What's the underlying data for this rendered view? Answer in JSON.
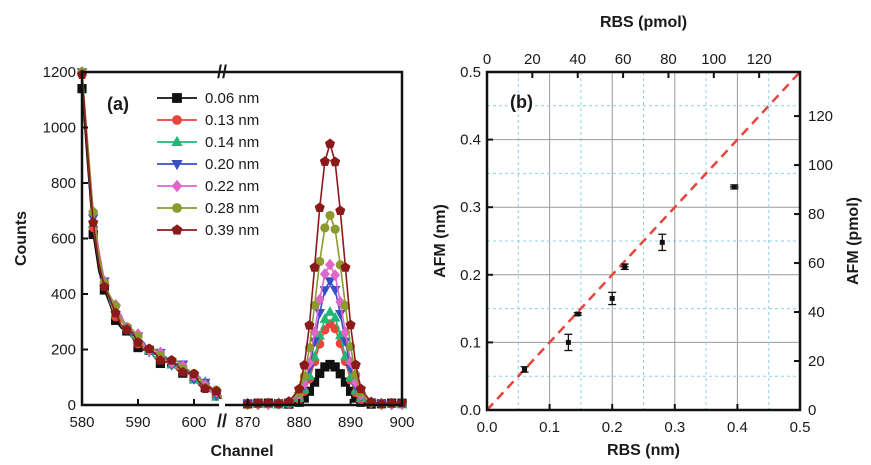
{
  "chart_data": [
    {
      "panel": "(a)",
      "type": "line",
      "xlabel": "Channel",
      "ylabel": "Counts",
      "x_segments": [
        {
          "xlim": [
            580,
            605
          ],
          "ticks": [
            "580",
            "590",
            "600"
          ],
          "tick_values": [
            580,
            590,
            600
          ]
        },
        {
          "xlim": [
            865,
            900
          ],
          "ticks": [
            "870",
            "880",
            "890",
            "900"
          ],
          "tick_values": [
            870,
            880,
            890,
            900
          ]
        }
      ],
      "break_marks": [
        "//",
        "//"
      ],
      "ylim": [
        0,
        1200
      ],
      "yticks": [
        "0",
        "200",
        "400",
        "600",
        "800",
        "1000",
        "1200"
      ],
      "legend": "top-center",
      "left_base": {
        "x": [
          580,
          581,
          582,
          583,
          584,
          585,
          586,
          587,
          588,
          589,
          590,
          591,
          592,
          593,
          594,
          595,
          596,
          597,
          598,
          599,
          600,
          601,
          602,
          603,
          604,
          605
        ],
        "y": [
          1200,
          900,
          650,
          520,
          430,
          370,
          330,
          300,
          270,
          250,
          230,
          210,
          195,
          180,
          170,
          160,
          150,
          140,
          130,
          115,
          100,
          85,
          70,
          55,
          40,
          20
        ]
      },
      "right_x": [
        870,
        872,
        874,
        876,
        878,
        880,
        881,
        882,
        883,
        884,
        885,
        886,
        887,
        888,
        889,
        890,
        891,
        892,
        894,
        896,
        898,
        900
      ],
      "right_shape": [
        0.0,
        0.0,
        0.0,
        0.0,
        0.01,
        0.06,
        0.15,
        0.3,
        0.52,
        0.75,
        0.93,
        1.0,
        0.93,
        0.74,
        0.52,
        0.3,
        0.15,
        0.06,
        0.01,
        0.0,
        0.0,
        0.0
      ],
      "series": [
        {
          "name": "0.06 nm",
          "color": "#111111",
          "marker": "square",
          "left_scale": 0.95,
          "peak": 145
        },
        {
          "name": "0.13 nm",
          "color": "#e8453c",
          "marker": "circle",
          "left_scale": 1.0,
          "peak": 290
        },
        {
          "name": "0.14 nm",
          "color": "#22b573",
          "marker": "triangle-up",
          "left_scale": 1.02,
          "peak": 330
        },
        {
          "name": "0.20 nm",
          "color": "#3a4fc4",
          "marker": "triangle-down",
          "left_scale": 1.04,
          "peak": 440
        },
        {
          "name": "0.22 nm",
          "color": "#e066c8",
          "marker": "diamond",
          "left_scale": 1.06,
          "peak": 500
        },
        {
          "name": "0.28 nm",
          "color": "#8c9a2e",
          "marker": "circle",
          "left_scale": 1.05,
          "peak": 680
        },
        {
          "name": "0.39 nm",
          "color": "#8b1a1a",
          "marker": "pentagon",
          "left_scale": 1.0,
          "peak": 940
        }
      ]
    },
    {
      "panel": "(b)",
      "type": "scatter",
      "xlabel": "RBS (nm)",
      "ylabel": "AFM (nm)",
      "xlim": [
        0,
        0.5
      ],
      "ylim": [
        0,
        0.5
      ],
      "xticks": [
        "0.0",
        "0.1",
        "0.2",
        "0.3",
        "0.4",
        "0.5"
      ],
      "yticks": [
        "0.0",
        "0.1",
        "0.2",
        "0.3",
        "0.4",
        "0.5"
      ],
      "top_xlabel": "RBS (pmol)",
      "top_xlim": [
        0,
        138
      ],
      "top_xticks": [
        "0",
        "20",
        "40",
        "60",
        "80",
        "100",
        "120"
      ],
      "right_ylabel": "AFM (pmol)",
      "right_ylim": [
        0,
        138
      ],
      "right_yticks": [
        "0",
        "20",
        "40",
        "60",
        "80",
        "100",
        "120"
      ],
      "grid": true,
      "fit_line": {
        "x": [
          0,
          0.5
        ],
        "y": [
          0,
          0.5
        ],
        "color": "#e8453c",
        "style": "dashed"
      },
      "points": [
        {
          "x": 0.06,
          "y": 0.06,
          "xerr": 0.004,
          "yerr": 0.004
        },
        {
          "x": 0.13,
          "y": 0.1,
          "xerr": 0.003,
          "yerr": 0.012
        },
        {
          "x": 0.145,
          "y": 0.142,
          "xerr": 0.005,
          "yerr": 0.002
        },
        {
          "x": 0.2,
          "y": 0.165,
          "xerr": 0.004,
          "yerr": 0.009
        },
        {
          "x": 0.22,
          "y": 0.212,
          "xerr": 0.006,
          "yerr": 0.004
        },
        {
          "x": 0.28,
          "y": 0.248,
          "xerr": 0.003,
          "yerr": 0.012
        },
        {
          "x": 0.395,
          "y": 0.33,
          "xerr": 0.007,
          "yerr": 0.003
        }
      ]
    }
  ]
}
